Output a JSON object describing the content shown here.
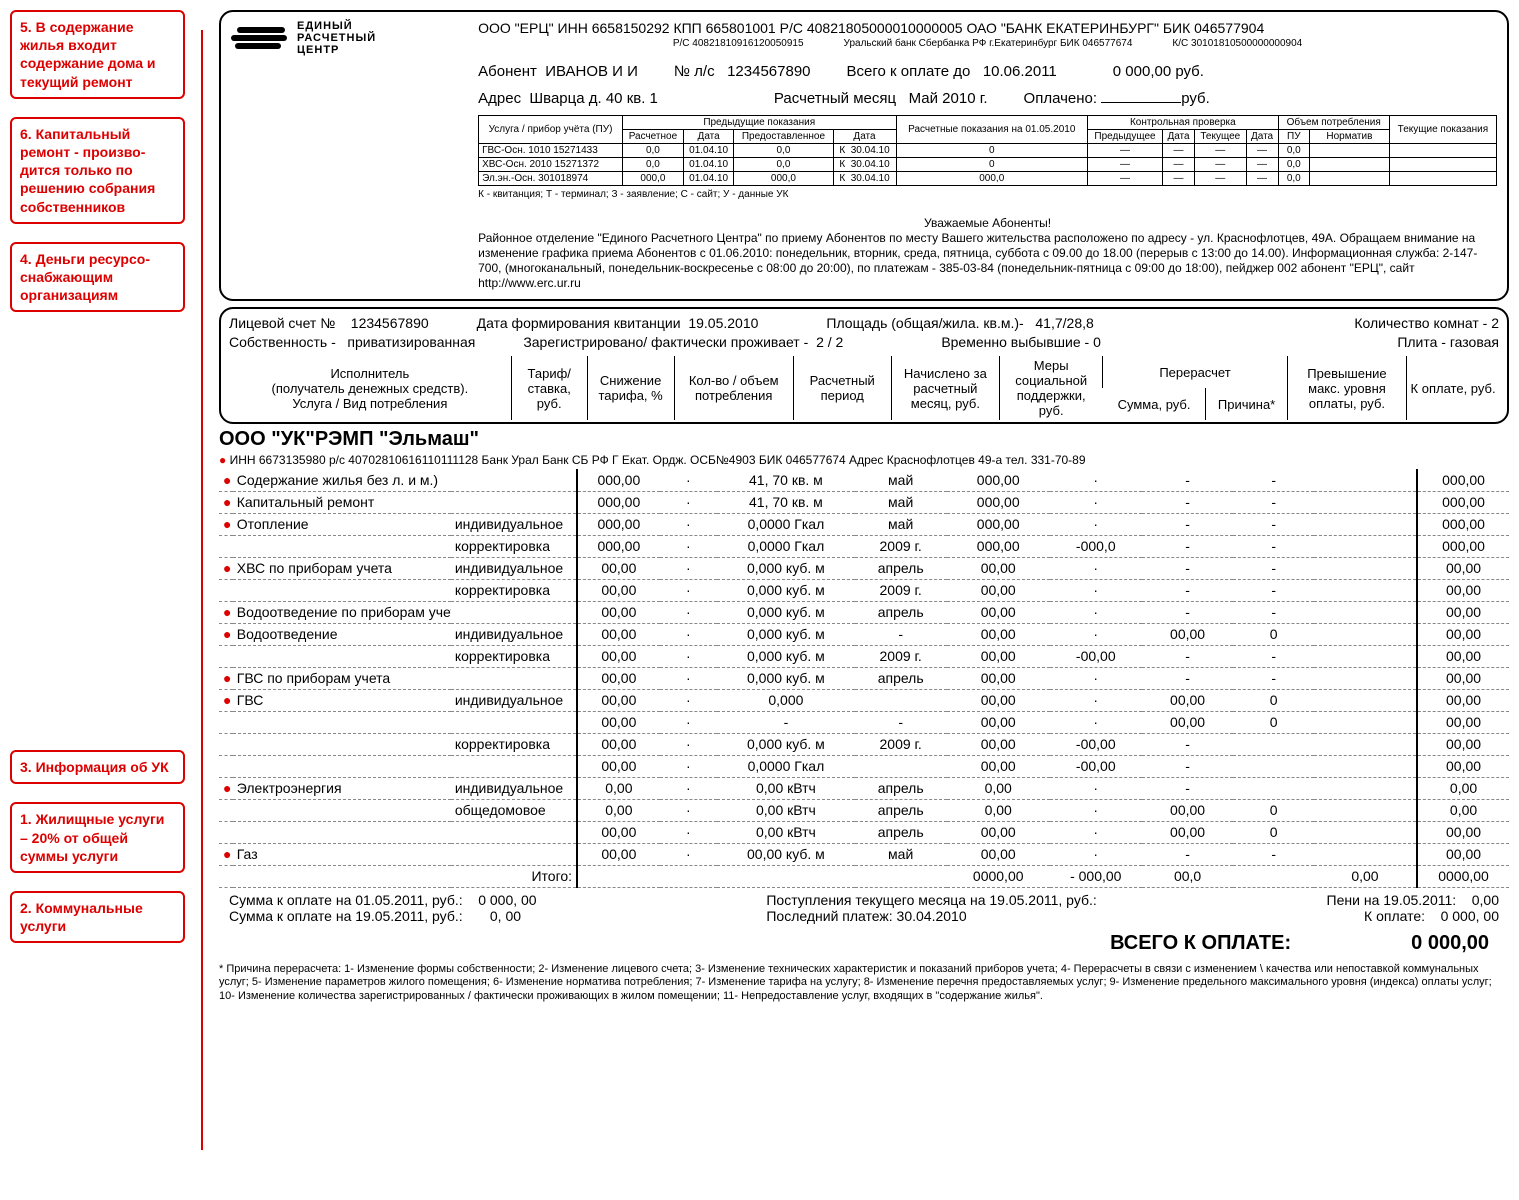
{
  "callouts": {
    "c5": "5. В содержание жилья входит содержание дома и текущий ремонт",
    "c6": "6. Капитальный ремонт - произво­дится только по решению собрания собственников",
    "c4": "4. Деньги ресурсо­снабжающим организациям",
    "c3": "3. Информация об УК",
    "c1": "1. Жилищные услуги – 20% от общей суммы услуги",
    "c2": "2. Коммунальные услуги"
  },
  "logo": {
    "l1": "Единый",
    "l2": "Расчетный",
    "l3": "Центр"
  },
  "header": {
    "bank_line": "ООО \"ЕРЦ\"   ИНН 6658150292 КПП 665801001   Р/С 40821805000010000005 ОАО \"БАНК ЕКАТЕРИНБУРГ\" БИК 046577904",
    "sub1": "Р/С 40821810916120050915",
    "sub2": "Уральский банк Сбербанка РФ г.Екатеринбург БИК 046577674",
    "sub3": "К/С 30101810500000000904",
    "abonent_lbl": "Абонент",
    "abonent": "ИВАНОВ И И",
    "ls_lbl": "№ л/с",
    "ls": "1234567890",
    "pay_due_lbl": "Всего к оплате до",
    "pay_due_date": "10.06.2011",
    "pay_due_amt": "0 000,00 руб.",
    "addr_lbl": "Адрес",
    "addr": "Шварца д. 40   кв. 1",
    "month_lbl": "Расчетный месяц",
    "month": "Май 2010 г.",
    "paid_lbl": "Оплачено:",
    "paid_val": "",
    "paid_suffix": "руб."
  },
  "meters": {
    "headers": {
      "h1": "Услуга / прибор учёта (ПУ)",
      "h2": "Предыдущие показания",
      "h2a": "Расчетное",
      "h2b": "Дата",
      "h2c": "Предоставленное",
      "h2d": "Дата",
      "h3": "Расчетные показания на 01.05.2010",
      "h4": "Контрольная проверка",
      "h4a": "Предыдущее",
      "h4b": "Дата",
      "h4c": "Текущее",
      "h4d": "Дата",
      "h5": "Объем потребления",
      "h5a": "ПУ",
      "h5b": "Норматив",
      "h6": "Текущие показания"
    },
    "rows": [
      {
        "name": "ГВС-Осн. 1010 15271433",
        "r_calc": "0,0",
        "r_date": "01.04.10",
        "r_prov": "0,0",
        "r_pd": "К",
        "r_cd": "30.04.10",
        "calc": "0",
        "cp": "—",
        "pu": "0,0",
        "norm": ""
      },
      {
        "name": "ХВС-Осн. 2010 15271372",
        "r_calc": "0,0",
        "r_date": "01.04.10",
        "r_prov": "0,0",
        "r_pd": "К",
        "r_cd": "30.04.10",
        "calc": "0",
        "cp": "—",
        "pu": "0,0",
        "norm": ""
      },
      {
        "name": "Эл.эн.-Осн. 301018974",
        "r_calc": "000,0",
        "r_date": "01.04.10",
        "r_prov": "000,0",
        "r_pd": "К",
        "r_cd": "30.04.10",
        "calc": "000,0",
        "cp": "",
        "pu": "0,0",
        "norm": ""
      }
    ],
    "legend": "К - квитанция; Т - терминал; З - заявление; С - сайт; У - данные УК"
  },
  "notice": {
    "title": "Уважаемые Абоненты!",
    "body": "Районное отделение \"Единого Расчетного Центра\" по приему Абонентов по месту Вашего жительства расположено по адресу - ул. Краснофлотцев, 49А. Обращаем внимание на изменение графика приема Абонентов с 01.06.2010: понедельник, вторник, среда, пятница, суббота с 09.00 до 18.00 (перерыв с 13:00 до 14.00). Информационная служба: 2-147-700, (многоканальный, понедельник-воскресенье с 08:00 до 20:00), по платежам - 385-03-84 (понедельник-пятница с 09:00 до 18:00), пейджер 002 абонент \"ЕРЦ\", сайт http://www.erc.ur.ru"
  },
  "mid": {
    "ls_lbl": "Лицевой счет №",
    "ls": "1234567890",
    "form_lbl": "Дата формирования квитанции",
    "form_date": "19.05.2010",
    "area_lbl": "Площадь (общая/жила. кв.м.)-",
    "area": "41,7/28,8",
    "rooms_lbl": "Количество комнат - 2",
    "own_lbl": "Собственность -",
    "own_val": "приватизированная",
    "reg_lbl": "Зарегистрировано/ фактически проживает -",
    "reg": "2 / 2",
    "temp_lbl": "Временно выбывшие - 0",
    "stove_lbl": "Плита - газовая"
  },
  "cols": {
    "c1a": "Исполнитель",
    "c1b": "(получатель денежных средств).",
    "c1c": "Услуга / Вид потребления",
    "c2": "Тариф/ ставка, руб.",
    "c3": "Снижение тарифа, %",
    "c4": "Кол-во / объем потребления",
    "c5": "Расчетный период",
    "c6": "Начислено за расчетный месяц, руб.",
    "c7": "Меры социальной поддержки, руб.",
    "c8": "Перерасчет",
    "c8a": "Сумма, руб.",
    "c8b": "Причина*",
    "c9": "Превышение макс. уровня оплаты, руб.",
    "c10": "К оплате, руб."
  },
  "company": {
    "title": "ООО \"УК\"РЭМП \"Эльмаш\"",
    "sub": "ИНН 6673135980 р/с 40702810616110111128 Банк Урал Банк СБ РФ Г Екат. Ордж. ОСБ№4903 БИК 046577674 Адрес Краснофлотцев 49-а тел. 331-70-89"
  },
  "services": [
    {
      "name": "Содержание жилья без л. и м.)",
      "type": "",
      "tariff": "000,00",
      "disc": "·",
      "qty": "41, 70 кв. м",
      "period": "май",
      "charge": "000,00",
      "soc": "·",
      "re_sum": "-",
      "re_cause": "-",
      "over": "",
      "pay": "000,00"
    },
    {
      "name": "Капитальный ремонт",
      "type": "",
      "tariff": "000,00",
      "disc": "·",
      "qty": "41, 70 кв. м",
      "period": "май",
      "charge": "000,00",
      "soc": "·",
      "re_sum": "-",
      "re_cause": "-",
      "over": "",
      "pay": "000,00"
    },
    {
      "name": "Отопление",
      "type": "индивидуальное",
      "tariff": "000,00",
      "disc": "·",
      "qty": "0,0000 Гкал",
      "period": "май",
      "charge": "000,00",
      "soc": "·",
      "re_sum": "-",
      "re_cause": "-",
      "over": "",
      "pay": "000,00"
    },
    {
      "name": "",
      "type": "корректировка",
      "tariff": "000,00",
      "disc": "·",
      "qty": "0,0000 Гкал",
      "period": "2009 г.",
      "charge": "000,00",
      "soc": "-000,0",
      "re_sum": "-",
      "re_cause": "-",
      "over": "",
      "pay": "000,00"
    },
    {
      "name": "ХВС по приборам учета",
      "type": "индивидуальное",
      "tariff": "00,00",
      "disc": "·",
      "qty": "0,000 куб. м",
      "period": "апрель",
      "charge": "00,00",
      "soc": "·",
      "re_sum": "-",
      "re_cause": "-",
      "over": "",
      "pay": "00,00"
    },
    {
      "name": "",
      "type": "корректировка",
      "tariff": "00,00",
      "disc": "·",
      "qty": "0,000 куб. м",
      "period": "2009 г.",
      "charge": "00,00",
      "soc": "·",
      "re_sum": "-",
      "re_cause": "-",
      "over": "",
      "pay": "00,00"
    },
    {
      "name": "Водоотведение по приборам учета",
      "type": "",
      "tariff": "00,00",
      "disc": "·",
      "qty": "0,000 куб. м",
      "period": "апрель",
      "charge": "00,00",
      "soc": "·",
      "re_sum": "-",
      "re_cause": "-",
      "over": "",
      "pay": "00,00"
    },
    {
      "name": "Водоотведение",
      "type": "индивидуальное",
      "tariff": "00,00",
      "disc": "·",
      "qty": "0,000 куб. м",
      "period": "-",
      "charge": "00,00",
      "soc": "·",
      "re_sum": "00,00",
      "re_cause": "0",
      "over": "",
      "pay": "00,00"
    },
    {
      "name": "",
      "type": "корректировка",
      "tariff": "00,00",
      "disc": "·",
      "qty": "0,000 куб. м",
      "period": "2009 г.",
      "charge": "00,00",
      "soc": "-00,00",
      "re_sum": "-",
      "re_cause": "-",
      "over": "",
      "pay": "00,00"
    },
    {
      "name": "ГВС по приборам учета",
      "type": "",
      "tariff": "00,00",
      "disc": "·",
      "qty": "0,000 куб. м",
      "period": "апрель",
      "charge": "00,00",
      "soc": "·",
      "re_sum": "-",
      "re_cause": "-",
      "over": "",
      "pay": "00,00"
    },
    {
      "name": "ГВС",
      "type": "индивидуальное",
      "tariff": "00,00",
      "disc": "·",
      "qty": "0,000",
      "period": "",
      "charge": "00,00",
      "soc": "·",
      "re_sum": "00,00",
      "re_cause": "0",
      "over": "",
      "pay": "00,00"
    },
    {
      "name": "",
      "type": "",
      "tariff": "00,00",
      "disc": "·",
      "qty": "-",
      "period": "-",
      "charge": "00,00",
      "soc": "·",
      "re_sum": "00,00",
      "re_cause": "0",
      "over": "",
      "pay": "00,00"
    },
    {
      "name": "",
      "type": "корректировка",
      "tariff": "00,00",
      "disc": "·",
      "qty": "0,000 куб. м",
      "period": "2009 г.",
      "charge": "00,00",
      "soc": "-00,00",
      "re_sum": "-",
      "re_cause": "",
      "over": "",
      "pay": "00,00"
    },
    {
      "name": "",
      "type": "",
      "tariff": "00,00",
      "disc": "·",
      "qty": "0,0000 Гкал",
      "period": "",
      "charge": "00,00",
      "soc": "-00,00",
      "re_sum": "-",
      "re_cause": "",
      "over": "",
      "pay": "00,00"
    },
    {
      "name": "Электроэнергия",
      "type": "индивидуальное",
      "tariff": "0,00",
      "disc": "·",
      "qty": "0,00 кВтч",
      "period": "апрель",
      "charge": "0,00",
      "soc": "·",
      "re_sum": "-",
      "re_cause": "",
      "over": "",
      "pay": "0,00"
    },
    {
      "name": "",
      "type": "общедомовое",
      "tariff": "0,00",
      "disc": "·",
      "qty": "0,00 кВтч",
      "period": "апрель",
      "charge": "0,00",
      "soc": "·",
      "re_sum": "00,00",
      "re_cause": "0",
      "over": "",
      "pay": "0,00"
    },
    {
      "name": "",
      "type": "",
      "tariff": "00,00",
      "disc": "·",
      "qty": "0,00 кВтч",
      "period": "апрель",
      "charge": "00,00",
      "soc": "·",
      "re_sum": "00,00",
      "re_cause": "0",
      "over": "",
      "pay": "00,00"
    },
    {
      "name": "Газ",
      "type": "",
      "tariff": "00,00",
      "disc": "·",
      "qty": "00,00 куб. м",
      "period": "май",
      "charge": "00,00",
      "soc": "·",
      "re_sum": "-",
      "re_cause": "-",
      "over": "",
      "pay": "00,00"
    }
  ],
  "subtotal": {
    "lbl": "Итого:",
    "charge": "0000,00",
    "soc": "- 000,00",
    "re": "00,0",
    "over": "0,00",
    "pay": "0000,00"
  },
  "bottom": {
    "l1a": "Сумма к оплате на 01.05.2011, руб.:",
    "l1b": "0 000, 00",
    "l2a": "Сумма к оплате на 19.05.2011, руб.:",
    "l2b": "0, 00",
    "mid1": "Поступления текущего месяца на 19.05.2011, руб.:",
    "mid2": "Последний платеж: 30.04.2010",
    "r1a": "Пени на 19.05.2011:",
    "r1b": "0,00",
    "r2a": "К оплате:",
    "r2b": "0 000, 00",
    "grand_lbl": "ВСЕГО К ОПЛАТЕ:",
    "grand_val": "0 000,00"
  },
  "footnote": "* Причина перерасчета: 1- Изменение формы собственности; 2- Изменение лицевого счета; 3- Изменение технических характеристик и показаний приборов учета; 4- Перерасчеты в связи с изменением \\ качества или непоставкой коммунальных услуг; 5- Изменение параметров жилого помещения; 6- Изменение норматива потребления; 7- Изменение тарифа на услугу; 8- Изменение перечня предоставляемых услуг; 9- Изменение предельного максимального уровня (индекса) оплаты услуг; 10- Изменение количества зарегистрированных / фактически проживающих в жилом помещении; 11- Непредоставление услуг, входящих в \"содержание жилья\"."
}
